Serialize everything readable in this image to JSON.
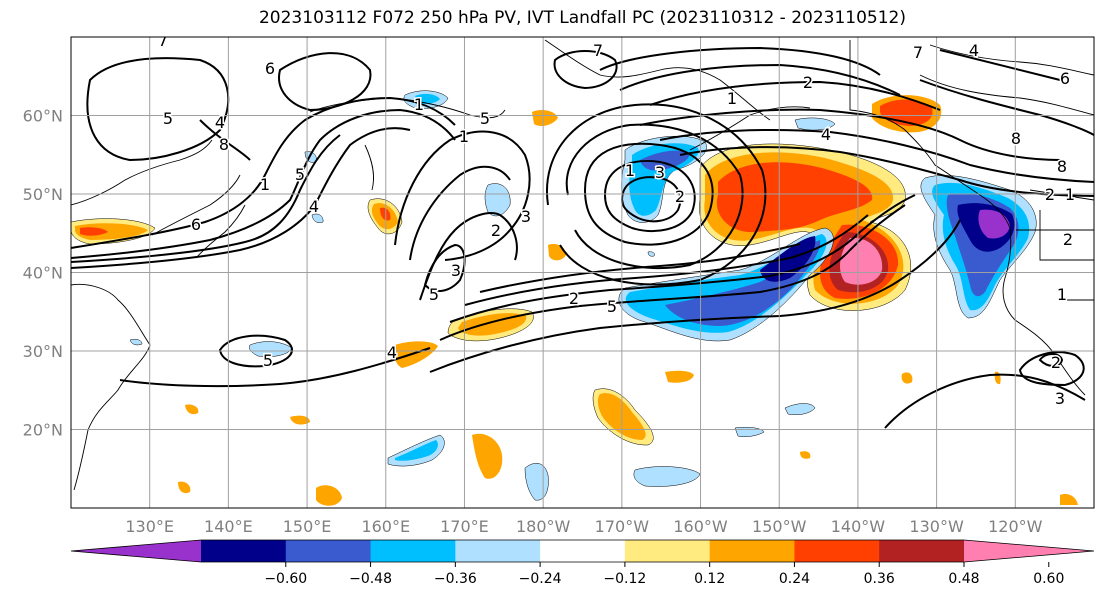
{
  "title": "2023103112 F072 250 hPa PV, IVT Landfall PC (2023110312 - 2023110512)",
  "colors": {
    "fill_scale": [
      "#9932cc",
      "#00008b",
      "#3a5bd0",
      "#00bfff",
      "#b0e0ff",
      "#ffffff",
      "#ffeb80",
      "#ffa500",
      "#ff4000",
      "#b22222",
      "#ff80b0"
    ],
    "contour": "#000000",
    "coast": "#000000",
    "grid": "#a0a0a0"
  },
  "chart_data": {
    "type": "heatmap",
    "title": "2023103112 F072 250 hPa PV, IVT Landfall PC (2023110312 - 2023110512)",
    "map_extent": {
      "lon": [
        120,
        250
      ],
      "lat": [
        10,
        70
      ]
    },
    "x_ticks": [
      "130°E",
      "140°E",
      "150°E",
      "160°E",
      "170°E",
      "180°W",
      "170°W",
      "160°W",
      "150°W",
      "140°W",
      "130°W",
      "120°W"
    ],
    "y_ticks": [
      "20°N",
      "30°N",
      "40°N",
      "50°N",
      "60°N"
    ],
    "grid": true,
    "colorbar": {
      "orientation": "horizontal",
      "extend": "both",
      "ticks": [
        "−0.60",
        "−0.48",
        "−0.36",
        "−0.24",
        "−0.12",
        "0.12",
        "0.24",
        "0.36",
        "0.48",
        "0.60"
      ]
    },
    "contour_labels": [
      "7",
      "6",
      "5",
      "4",
      "8",
      "1",
      "5",
      "6",
      "4",
      "5",
      "1",
      "1",
      "7",
      "3",
      "2",
      "5",
      "3",
      "2",
      "5",
      "4",
      "1",
      "2",
      "4",
      "7",
      "6",
      "8",
      "8",
      "1",
      "3",
      "2",
      "4",
      "5",
      "3",
      "2",
      "2",
      "1",
      "2",
      "1"
    ]
  }
}
